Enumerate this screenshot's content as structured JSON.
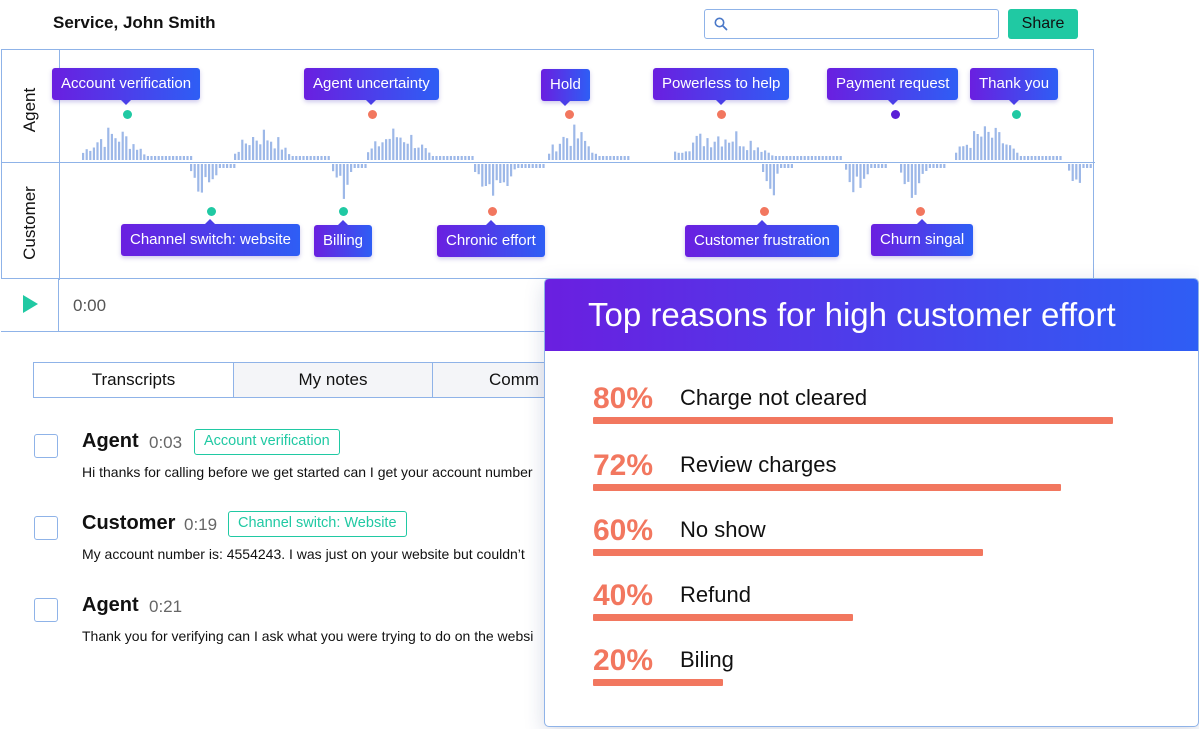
{
  "header": {
    "title": "Service, John Smith",
    "search_placeholder": "",
    "share_label": "Share"
  },
  "waveform": {
    "agent_label": "Agent",
    "customer_label": "Customer",
    "agent_tags": [
      "Account verification",
      "Agent uncertainty",
      "Hold",
      "Powerless to help",
      "Payment request",
      "Thank you"
    ],
    "customer_tags": [
      "Channel switch: website",
      "Billing",
      "Chronic effort",
      "Customer frustration",
      "Churn singal"
    ],
    "colors": {
      "teal": "#20c9a3",
      "coral": "#f2775f",
      "purple": "#5b1fd6",
      "wave": "#9db8e8"
    }
  },
  "player": {
    "time": "0:00"
  },
  "tabs": [
    "Transcripts",
    "My notes",
    "Comm"
  ],
  "transcript": [
    {
      "speaker": "Agent",
      "time": "0:03",
      "tag": "Account verification",
      "text": "Hi thanks for calling before we get started can I get your account number"
    },
    {
      "speaker": "Customer",
      "time": "0:19",
      "tag": "Channel switch: Website",
      "text": "My account number is: 4554243. I was just on your website but couldn’t"
    },
    {
      "speaker": "Agent",
      "time": "0:21",
      "tag": "",
      "text": "Thank you for verifying can I ask what you were trying to do on the websi"
    }
  ],
  "effort_card": {
    "title": "Top reasons for high customer effort",
    "reasons": [
      {
        "pct_label": "80%",
        "label": "Charge not cleared",
        "value": 80
      },
      {
        "pct_label": "72%",
        "label": "Review charges",
        "value": 72
      },
      {
        "pct_label": "60%",
        "label": "No show",
        "value": 60
      },
      {
        "pct_label": "40%",
        "label": "Refund",
        "value": 40
      },
      {
        "pct_label": "20%",
        "label": "Biling",
        "value": 20
      }
    ]
  }
}
